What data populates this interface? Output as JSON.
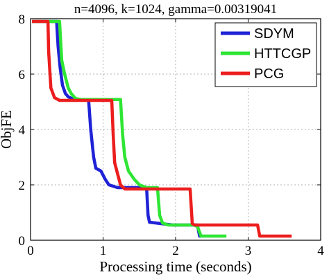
{
  "chart_data": {
    "type": "line",
    "title": "n=4096, k=1024, gamma=0.00319041",
    "xlabel": "Processing time (seconds)",
    "ylabel": "ObjFE",
    "xlim": [
      0,
      4
    ],
    "ylim": [
      0,
      8
    ],
    "xticks": [
      "0",
      "1",
      "2",
      "3",
      "4"
    ],
    "yticks": [
      "0",
      "2",
      "4",
      "6",
      "8"
    ],
    "grid": true,
    "legend_position": "top-right",
    "series": [
      {
        "name": "SDYM",
        "color": "#1f22d6",
        "points": [
          [
            0.02,
            7.9
          ],
          [
            0.36,
            7.9
          ],
          [
            0.38,
            7.0
          ],
          [
            0.41,
            6.2
          ],
          [
            0.44,
            5.6
          ],
          [
            0.48,
            5.3
          ],
          [
            0.52,
            5.18
          ],
          [
            0.6,
            5.08
          ],
          [
            0.8,
            5.08
          ],
          [
            0.83,
            4.0
          ],
          [
            0.87,
            3.0
          ],
          [
            0.9,
            2.6
          ],
          [
            0.97,
            2.5
          ],
          [
            1.03,
            2.2
          ],
          [
            1.08,
            2.0
          ],
          [
            1.2,
            1.9
          ],
          [
            1.6,
            1.9
          ],
          [
            1.62,
            0.9
          ],
          [
            1.64,
            0.65
          ],
          [
            1.8,
            0.6
          ],
          [
            1.96,
            0.55
          ],
          [
            2.3,
            0.55
          ],
          [
            2.33,
            0.15
          ],
          [
            2.35,
            0.15
          ]
        ]
      },
      {
        "name": "HTTCGP",
        "color": "#2ee534",
        "points": [
          [
            0.02,
            7.9
          ],
          [
            0.4,
            7.9
          ],
          [
            0.43,
            6.5
          ],
          [
            0.47,
            6.0
          ],
          [
            0.52,
            5.5
          ],
          [
            0.56,
            5.3
          ],
          [
            0.62,
            5.12
          ],
          [
            0.7,
            5.08
          ],
          [
            1.24,
            5.08
          ],
          [
            1.27,
            3.8
          ],
          [
            1.3,
            3.0
          ],
          [
            1.35,
            2.5
          ],
          [
            1.43,
            2.2
          ],
          [
            1.5,
            2.0
          ],
          [
            1.6,
            1.9
          ],
          [
            1.75,
            1.9
          ],
          [
            1.78,
            0.9
          ],
          [
            1.82,
            0.62
          ],
          [
            1.9,
            0.55
          ],
          [
            2.25,
            0.55
          ],
          [
            2.3,
            0.5
          ],
          [
            2.35,
            0.15
          ],
          [
            2.7,
            0.15
          ]
        ]
      },
      {
        "name": "PCG",
        "color": "#ec1d1d",
        "points": [
          [
            0.02,
            7.9
          ],
          [
            0.24,
            7.9
          ],
          [
            0.25,
            6.8
          ],
          [
            0.28,
            5.5
          ],
          [
            0.33,
            5.15
          ],
          [
            0.4,
            5.05
          ],
          [
            1.12,
            5.05
          ],
          [
            1.14,
            3.8
          ],
          [
            1.16,
            2.8
          ],
          [
            1.2,
            2.4
          ],
          [
            1.24,
            2.0
          ],
          [
            1.3,
            1.85
          ],
          [
            2.2,
            1.85
          ],
          [
            2.23,
            0.6
          ],
          [
            2.26,
            0.55
          ],
          [
            3.13,
            0.55
          ],
          [
            3.16,
            0.15
          ],
          [
            3.6,
            0.15
          ]
        ]
      }
    ]
  }
}
